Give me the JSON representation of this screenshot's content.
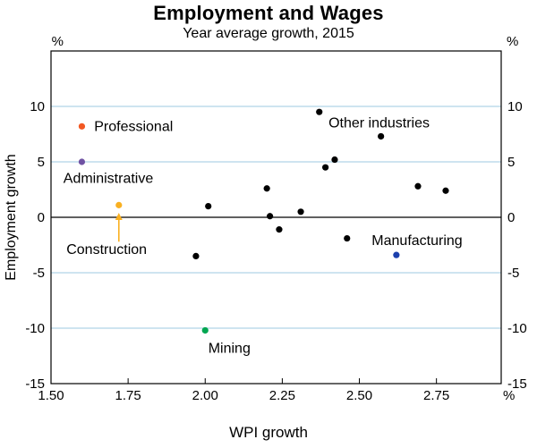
{
  "chart_data": {
    "type": "scatter",
    "title": "Employment and Wages",
    "subtitle": "Year average growth, 2015",
    "xlabel": "WPI growth",
    "ylabel": "Employment  growth",
    "unit": "%",
    "xlim": [
      1.5,
      2.96
    ],
    "ylim": [
      -15,
      15
    ],
    "grid": "horizontal",
    "grid_color": "#b0d4e7",
    "axis_color": "#000000",
    "x_ticks": [
      {
        "value": 1.5,
        "label": "1.50"
      },
      {
        "value": 1.75,
        "label": "1.75"
      },
      {
        "value": 2.0,
        "label": "2.00"
      },
      {
        "value": 2.25,
        "label": "2.25"
      },
      {
        "value": 2.5,
        "label": "2.50"
      },
      {
        "value": 2.75,
        "label": "2.75"
      }
    ],
    "y_ticks": [
      {
        "value": -15,
        "label": "-15"
      },
      {
        "value": -10,
        "label": "-10"
      },
      {
        "value": -5,
        "label": "-5"
      },
      {
        "value": 0,
        "label": "0"
      },
      {
        "value": 5,
        "label": "5"
      },
      {
        "value": 10,
        "label": "10"
      }
    ],
    "series": [
      {
        "name": "Professional",
        "color": "#f25822",
        "points": [
          [
            1.6,
            8.2
          ]
        ],
        "label": {
          "text": "Professional",
          "x": 1.64,
          "y": 8.2,
          "anchor": "start"
        }
      },
      {
        "name": "Administrative",
        "color": "#6f52a3",
        "points": [
          [
            1.6,
            5.0
          ]
        ],
        "label": {
          "text": "Administrative",
          "x": 1.54,
          "y": 3.5,
          "anchor": "start"
        }
      },
      {
        "name": "Construction",
        "color": "#f9b021",
        "points": [
          [
            1.72,
            1.1
          ]
        ],
        "label": {
          "text": "Construction",
          "x": 1.55,
          "y": -2.9,
          "anchor": "start"
        },
        "arrow": {
          "x": 1.72,
          "y_from": -2.2,
          "y_to": 0.4
        }
      },
      {
        "name": "Mining",
        "color": "#00a651",
        "points": [
          [
            2.0,
            -10.2
          ]
        ],
        "label": {
          "text": "Mining",
          "x": 2.01,
          "y": -11.8,
          "anchor": "start"
        }
      },
      {
        "name": "Manufacturing",
        "color": "#1c3fad",
        "points": [
          [
            2.62,
            -3.4
          ]
        ],
        "label": {
          "text": "Manufacturing",
          "x": 2.54,
          "y": -2.1,
          "anchor": "start"
        }
      },
      {
        "name": "Other industries",
        "color": "#000000",
        "points": [
          [
            1.97,
            -3.5
          ],
          [
            2.01,
            1.0
          ],
          [
            2.2,
            2.6
          ],
          [
            2.21,
            0.1
          ],
          [
            2.24,
            -1.1
          ],
          [
            2.31,
            0.5
          ],
          [
            2.37,
            9.5
          ],
          [
            2.39,
            4.5
          ],
          [
            2.42,
            5.2
          ],
          [
            2.46,
            -1.9
          ],
          [
            2.57,
            7.3
          ],
          [
            2.69,
            2.8
          ],
          [
            2.78,
            2.4
          ]
        ],
        "label": {
          "text": "Other industries",
          "x": 2.4,
          "y": 8.5,
          "anchor": "start"
        }
      }
    ]
  }
}
